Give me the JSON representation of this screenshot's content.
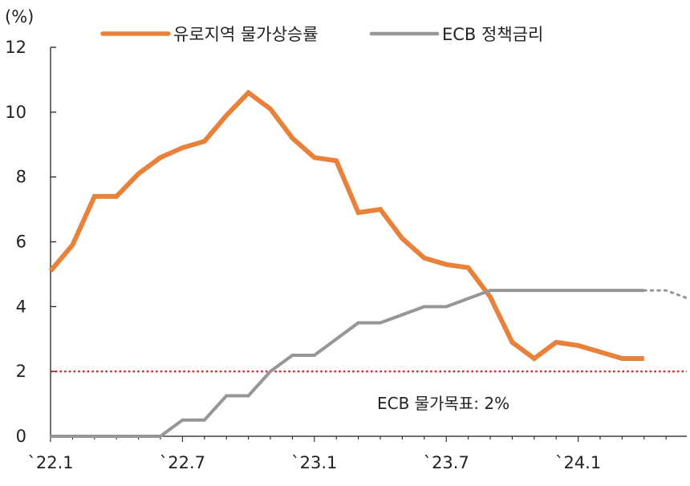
{
  "chart_data": {
    "type": "line",
    "unit_label": "(%)",
    "ylim": [
      0,
      12
    ],
    "yticks": [
      0,
      2,
      4,
      6,
      8,
      10,
      12
    ],
    "x_tick_labels": [
      "`22.1",
      "`22.7",
      "`23.1",
      "`23.7",
      "`24.1"
    ],
    "legend": [
      "유로지역 물가상승률",
      "ECB 정책금리"
    ],
    "legend_position": "top",
    "grid": false,
    "series": [
      {
        "name": "유로지역 물가상승률",
        "color": "#E8823A",
        "values": [
          5.1,
          5.9,
          7.4,
          7.4,
          8.1,
          8.6,
          8.9,
          9.1,
          9.9,
          10.6,
          10.1,
          9.2,
          8.6,
          8.5,
          6.9,
          7.0,
          6.1,
          5.5,
          5.3,
          5.2,
          4.3,
          2.9,
          2.4,
          2.9,
          2.8,
          2.6,
          2.4,
          2.4
        ]
      },
      {
        "name": "ECB 정책금리",
        "color": "#969696",
        "values": [
          0,
          0,
          0,
          0,
          0,
          0,
          0.5,
          0.5,
          1.25,
          1.25,
          2.0,
          2.5,
          2.5,
          3.0,
          3.5,
          3.5,
          3.75,
          4.0,
          4.0,
          4.25,
          4.5,
          4.5,
          4.5,
          4.5,
          4.5,
          4.5,
          4.5,
          4.5
        ],
        "projection_values": [
          4.5,
          4.5,
          4.25
        ]
      }
    ],
    "reference_line": {
      "value": 2,
      "label": "ECB 물가목표: 2%",
      "color": "#E02020"
    }
  }
}
